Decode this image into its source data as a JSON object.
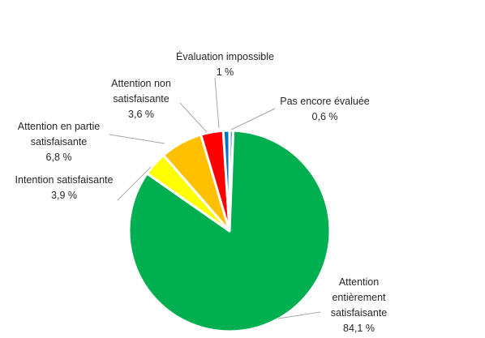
{
  "chart_data": {
    "type": "pie",
    "title": "",
    "slices": [
      {
        "label": "Pas encore évaluée",
        "value_label": "0,6 %",
        "value": 0.6,
        "color": "#5b9bd5"
      },
      {
        "label": "Attention entièrement satisfaisante",
        "value_label": "84,1 %",
        "value": 84.1,
        "color": "#00b050"
      },
      {
        "label": "Intention satisfaisante",
        "value_label": "3,9 %",
        "value": 3.9,
        "color": "#ffff00"
      },
      {
        "label": "Attention en partie satisfaisante",
        "value_label": "6,8 %",
        "value": 6.8,
        "color": "#ffc000"
      },
      {
        "label": "Attention non satisfaisante",
        "value_label": "3,6 %",
        "value": 3.6,
        "color": "#ff0000"
      },
      {
        "label": "Évaluation impossible",
        "value_label": "1 %",
        "value": 1.0,
        "color": "#0070c0"
      }
    ],
    "label_lines": [
      "Pas encore évaluée",
      "Attention entièrement satisfaisante",
      "Intention satisfaisante",
      "Attention en partie satisfaisante",
      "Attention non satisfaisante",
      "Évaluation impossible"
    ]
  }
}
